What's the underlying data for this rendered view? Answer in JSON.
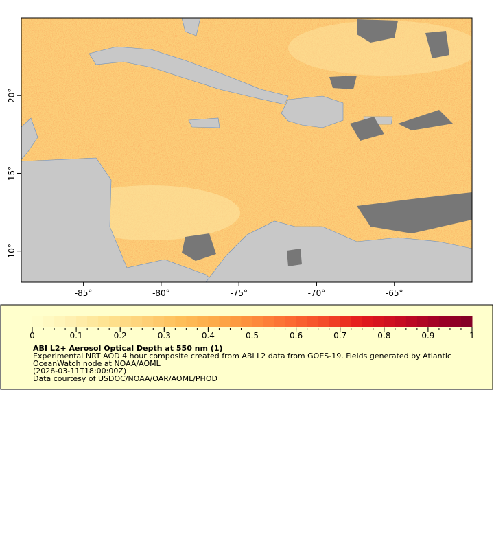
{
  "map": {
    "xlim": [
      -89,
      -60
    ],
    "ylim": [
      8,
      25
    ],
    "xticks": [
      {
        "value": -85,
        "label": "-85°"
      },
      {
        "value": -80,
        "label": "-80°"
      },
      {
        "value": -75,
        "label": "-75°"
      },
      {
        "value": -70,
        "label": "-70°"
      },
      {
        "value": -65,
        "label": "-65°"
      }
    ],
    "yticks": [
      {
        "value": 10,
        "label": "10°"
      },
      {
        "value": 15,
        "label": "15°"
      },
      {
        "value": 20,
        "label": "20°"
      }
    ]
  },
  "colorbar": {
    "lim": [
      0,
      1
    ],
    "ticks": [
      0,
      0.1,
      0.2,
      0.3,
      0.4,
      0.5,
      0.6,
      0.7,
      0.8,
      0.9,
      1
    ],
    "colors": [
      "#ffffcc",
      "#fff1b3",
      "#fee391",
      "#fed27a",
      "#febf5a",
      "#fdaa48",
      "#fd8d3c",
      "#fc6c33",
      "#f44a28",
      "#e31a1c",
      "#c80d21",
      "#a30026",
      "#800026"
    ]
  },
  "legend": {
    "title": "ABI L2+ Aerosol Optical Depth at 550 nm (1)",
    "lines": [
      "Experimental NRT AOD 4 hour composite created from ABI L2 data from GOES-19. Fields generated by Atlantic",
      "OceanWatch node at NOAA/AOML",
      "(2026-03-11T18:00:00Z)",
      "Data courtesy of USDOC/NOAA/OAR/AOML/PHOD"
    ]
  }
}
